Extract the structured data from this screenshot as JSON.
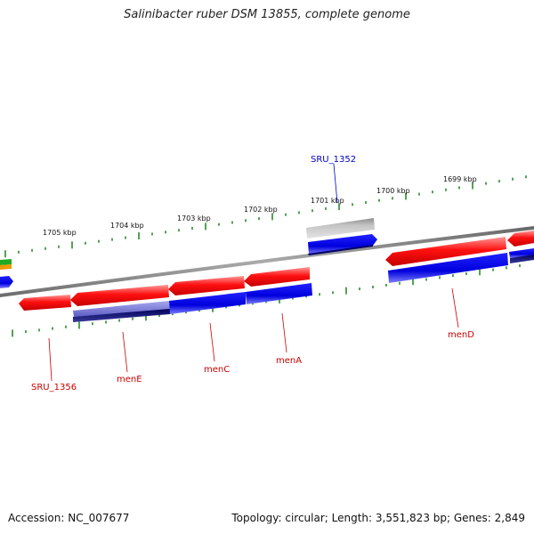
{
  "title": "Salinibacter ruber DSM 13855, complete genome",
  "footer": {
    "accession": "Accession: NC_007677",
    "topology": "Topology: circular; Length: 3,551,823 bp; Genes: 2,849"
  },
  "colors": {
    "backbone": "#888888",
    "forward_feature": "#0000ee",
    "reverse_feature": "#ee0000",
    "pseudo_feature": "#b0b0b0",
    "tick": "#2a8a2a",
    "red_label": "#cc0000",
    "blue_label": "#0000cc"
  },
  "scale": {
    "labels": [
      "1705 kbp",
      "1704 kbp",
      "1703 kbp",
      "1702 kbp",
      "1701 kbp",
      "1700 kbp",
      "1699 kbp"
    ]
  },
  "genes": [
    {
      "name": "SRU_1356",
      "color": "red"
    },
    {
      "name": "menE",
      "color": "red"
    },
    {
      "name": "menC",
      "color": "red"
    },
    {
      "name": "menA",
      "color": "red"
    },
    {
      "name": "menD",
      "color": "red"
    },
    {
      "name": "SRU_1352",
      "color": "blue"
    }
  ]
}
